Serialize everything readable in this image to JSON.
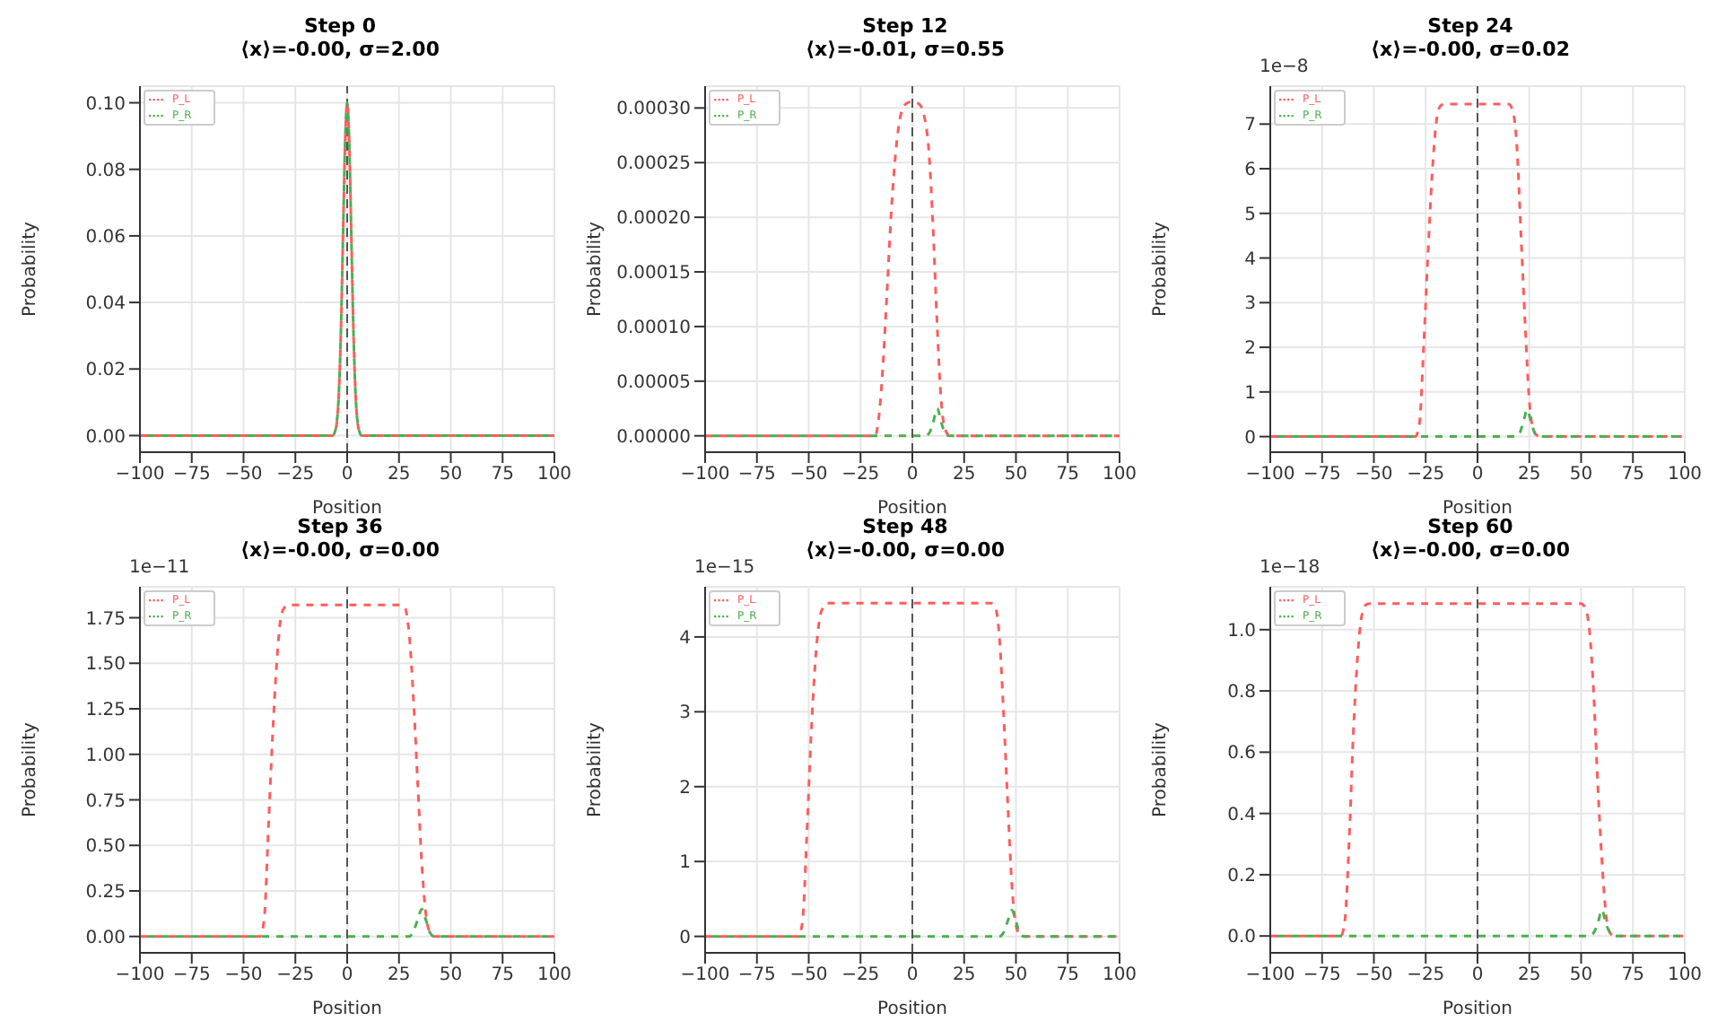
{
  "chart_data": [
    {
      "type": "line",
      "title": "Step 0",
      "subtitle": "⟨x⟩=-0.00, σ=2.00",
      "xlabel": "Position",
      "ylabel": "Probability",
      "legend": "top left",
      "grid": true,
      "marker": "none",
      "line_style": "dashed",
      "xlim": [
        -100,
        100
      ],
      "xticks": [
        {
          "value": -100,
          "label": "−100"
        },
        {
          "value": -75,
          "label": "−75"
        },
        {
          "value": -50,
          "label": "−50"
        },
        {
          "value": -25,
          "label": "−25"
        },
        0,
        25,
        50,
        75,
        100
      ],
      "ylim": [
        -0.005,
        0.105
      ],
      "yticks": [
        {
          "value": 0,
          "label": "0.00"
        },
        {
          "value": 0.02,
          "label": "0.02"
        },
        {
          "value": 0.04,
          "label": "0.04"
        },
        {
          "value": 0.06,
          "label": "0.06"
        },
        {
          "value": 0.08,
          "label": "0.08"
        },
        {
          "value": 0.1,
          "label": "0.10"
        }
      ],
      "ref_lines": [
        {
          "axis": "x",
          "value": 0,
          "color": "#555555",
          "line_style": "dashed"
        }
      ],
      "series": [
        {
          "name": "P_L",
          "color": "#ff5c5c",
          "x": [
            -100,
            -7,
            -6,
            -5,
            -4,
            -3,
            -2,
            -1,
            0,
            1,
            2,
            3,
            4,
            5,
            6,
            7,
            100
          ],
          "values": [
            0,
            0,
            0.001,
            0.004,
            0.013,
            0.032,
            0.06,
            0.088,
            0.1,
            0.088,
            0.06,
            0.032,
            0.013,
            0.004,
            0.001,
            0,
            0
          ]
        },
        {
          "name": "P_R",
          "color": "#4caf50",
          "x": [
            -100,
            -7,
            -6,
            -5,
            -4,
            -3,
            -2,
            -1,
            0,
            1,
            2,
            3,
            4,
            5,
            6,
            7,
            100
          ],
          "values": [
            0,
            0,
            0.001,
            0.004,
            0.013,
            0.032,
            0.06,
            0.088,
            0.1,
            0.088,
            0.06,
            0.032,
            0.013,
            0.004,
            0.001,
            0,
            0
          ]
        }
      ]
    },
    {
      "type": "line",
      "title": "Step 12",
      "subtitle": "⟨x⟩=-0.01, σ=0.55",
      "xlabel": "Position",
      "ylabel": "Probability",
      "legend": "top left",
      "grid": true,
      "marker": "none",
      "line_style": "dashed",
      "xlim": [
        -100,
        100
      ],
      "xticks": [
        {
          "value": -100,
          "label": "−100"
        },
        {
          "value": -75,
          "label": "−75"
        },
        {
          "value": -50,
          "label": "−50"
        },
        {
          "value": -25,
          "label": "−25"
        },
        0,
        25,
        50,
        75,
        100
      ],
      "ylim": [
        -1.5e-05,
        0.00032
      ],
      "yticks": [
        {
          "value": 0,
          "label": "0.00000"
        },
        {
          "value": 5e-05,
          "label": "0.00005"
        },
        {
          "value": 0.0001,
          "label": "0.00010"
        },
        {
          "value": 0.00015,
          "label": "0.00015"
        },
        {
          "value": 0.0002,
          "label": "0.00020"
        },
        {
          "value": 0.00025,
          "label": "0.00025"
        },
        {
          "value": 0.0003,
          "label": "0.00030"
        }
      ],
      "ref_lines": [
        {
          "axis": "x",
          "value": 0,
          "color": "#555555",
          "line_style": "dashed"
        }
      ],
      "series": [
        {
          "name": "P_L",
          "color": "#ff5c5c",
          "x": [
            -100,
            -18,
            -16,
            -14,
            -12,
            -10,
            -8,
            -6,
            -4,
            -2,
            0,
            2,
            4,
            6,
            8,
            10,
            12,
            14,
            16,
            18,
            100
          ],
          "values": [
            0,
            0,
            2e-05,
            7e-05,
            0.00014,
            0.00021,
            0.00026,
            0.00029,
            0.000302,
            0.000305,
            0.000306,
            0.000305,
            0.000302,
            0.00029,
            0.00026,
            0.00019,
            0.0001,
            3e-05,
            5e-06,
            0,
            0
          ]
        },
        {
          "name": "P_R",
          "color": "#4caf50",
          "x": [
            -100,
            6,
            8,
            10,
            12,
            14,
            16,
            18,
            100
          ],
          "values": [
            0,
            0,
            2e-06,
            1.2e-05,
            2.5e-05,
            1.2e-05,
            2e-06,
            0,
            0
          ]
        }
      ]
    },
    {
      "type": "line",
      "title": "Step 24",
      "subtitle": "⟨x⟩=-0.00, σ=0.02",
      "xlabel": "Position",
      "ylabel": "Probability",
      "legend": "top left",
      "grid": true,
      "marker": "none",
      "line_style": "dashed",
      "annotations": [
        "1e−8"
      ],
      "xlim": [
        -100,
        100
      ],
      "xticks": [
        {
          "value": -100,
          "label": "−100"
        },
        {
          "value": -75,
          "label": "−75"
        },
        {
          "value": -50,
          "label": "−50"
        },
        {
          "value": -25,
          "label": "−25"
        },
        0,
        25,
        50,
        75,
        100
      ],
      "ylim": [
        -0.35,
        7.85
      ],
      "yticks": [
        0,
        1,
        2,
        3,
        4,
        5,
        6,
        7
      ],
      "ref_lines": [
        {
          "axis": "x",
          "value": 0,
          "color": "#555555",
          "line_style": "dashed"
        }
      ],
      "series": [
        {
          "name": "P_L",
          "color": "#ff5c5c",
          "x": [
            -100,
            -30,
            -28,
            -26,
            -24,
            -22,
            -20,
            -18,
            -16,
            15,
            17,
            19,
            21,
            23,
            25,
            27,
            29,
            31,
            100
          ],
          "values": [
            0,
            0,
            0.3,
            2,
            4,
            5.8,
            7,
            7.4,
            7.45,
            7.45,
            7.3,
            6.5,
            4.5,
            2.5,
            0.8,
            0.15,
            0.02,
            0,
            0
          ]
        },
        {
          "name": "P_R",
          "color": "#4caf50",
          "x": [
            -100,
            18,
            20,
            22,
            24,
            26,
            28,
            30,
            100
          ],
          "values": [
            0,
            0,
            0.05,
            0.3,
            0.6,
            0.3,
            0.05,
            0,
            0
          ]
        }
      ]
    },
    {
      "type": "line",
      "title": "Step 36",
      "subtitle": "⟨x⟩=-0.00, σ=0.00",
      "xlabel": "Position",
      "ylabel": "Probability",
      "legend": "top left",
      "grid": true,
      "marker": "none",
      "line_style": "dashed",
      "annotations": [
        "1e−11"
      ],
      "xlim": [
        -100,
        100
      ],
      "xticks": [
        {
          "value": -100,
          "label": "−100"
        },
        {
          "value": -75,
          "label": "−75"
        },
        {
          "value": -50,
          "label": "−50"
        },
        {
          "value": -25,
          "label": "−25"
        },
        0,
        25,
        50,
        75,
        100
      ],
      "ylim": [
        -0.09,
        1.92
      ],
      "yticks": [
        {
          "value": 0,
          "label": "0.00"
        },
        0.25,
        {
          "value": 0.5,
          "label": "0.50"
        },
        0.75,
        {
          "value": 1,
          "label": "1.00"
        },
        1.25,
        {
          "value": 1.5,
          "label": "1.50"
        },
        1.75
      ],
      "ref_lines": [
        {
          "axis": "x",
          "value": 0,
          "color": "#555555",
          "line_style": "dashed"
        }
      ],
      "series": [
        {
          "name": "P_L",
          "color": "#ff5c5c",
          "x": [
            -100,
            -42,
            -40,
            -38,
            -36,
            -34,
            -32,
            -30,
            -28,
            26,
            28,
            30,
            32,
            34,
            36,
            38,
            40,
            42,
            100
          ],
          "values": [
            0,
            0,
            0.1,
            0.6,
            1.1,
            1.5,
            1.75,
            1.81,
            1.82,
            1.82,
            1.8,
            1.65,
            1.3,
            0.85,
            0.4,
            0.12,
            0.02,
            0,
            0
          ]
        },
        {
          "name": "P_R",
          "color": "#4caf50",
          "x": [
            -100,
            30,
            32,
            34,
            36,
            38,
            40,
            42,
            100
          ],
          "values": [
            0,
            0,
            0.03,
            0.09,
            0.15,
            0.09,
            0.02,
            0,
            0
          ]
        }
      ]
    },
    {
      "type": "line",
      "title": "Step 48",
      "subtitle": "⟨x⟩=-0.00, σ=0.00",
      "xlabel": "Position",
      "ylabel": "Probability",
      "legend": "top left",
      "grid": true,
      "marker": "none",
      "line_style": "dashed",
      "annotations": [
        "1e−15"
      ],
      "xlim": [
        -100,
        100
      ],
      "xticks": [
        {
          "value": -100,
          "label": "−100"
        },
        {
          "value": -75,
          "label": "−75"
        },
        {
          "value": -50,
          "label": "−50"
        },
        {
          "value": -25,
          "label": "−25"
        },
        0,
        25,
        50,
        75,
        100
      ],
      "ylim": [
        -0.22,
        4.67
      ],
      "yticks": [
        0,
        1,
        2,
        3,
        4
      ],
      "ref_lines": [
        {
          "axis": "x",
          "value": 0,
          "color": "#555555",
          "line_style": "dashed"
        }
      ],
      "series": [
        {
          "name": "P_L",
          "color": "#ff5c5c",
          "x": [
            -100,
            -55,
            -53,
            -51,
            -49,
            -47,
            -45,
            -43,
            -41,
            38,
            40,
            42,
            44,
            46,
            48,
            50,
            52,
            54,
            100
          ],
          "values": [
            0,
            0,
            0.2,
            1.3,
            2.6,
            3.6,
            4.2,
            4.4,
            4.45,
            4.45,
            4.4,
            4,
            3,
            1.8,
            0.7,
            0.15,
            0.02,
            0,
            0
          ]
        },
        {
          "name": "P_R",
          "color": "#4caf50",
          "x": [
            -100,
            42,
            44,
            46,
            48,
            50,
            52,
            54,
            100
          ],
          "values": [
            0,
            0,
            0.05,
            0.2,
            0.35,
            0.2,
            0.03,
            0,
            0
          ]
        }
      ]
    },
    {
      "type": "line",
      "title": "Step 60",
      "subtitle": "⟨x⟩=-0.00, σ=0.00",
      "xlabel": "Position",
      "ylabel": "Probability",
      "legend": "top left",
      "grid": true,
      "marker": "none",
      "line_style": "dashed",
      "annotations": [
        "1e−18"
      ],
      "xlim": [
        -100,
        100
      ],
      "xticks": [
        {
          "value": -100,
          "label": "−100"
        },
        {
          "value": -75,
          "label": "−75"
        },
        {
          "value": -50,
          "label": "−50"
        },
        {
          "value": -25,
          "label": "−25"
        },
        0,
        25,
        50,
        75,
        100
      ],
      "ylim": [
        -0.055,
        1.14
      ],
      "yticks": [
        {
          "value": 0,
          "label": "0.0"
        },
        0.2,
        0.4,
        0.6,
        0.8,
        {
          "value": 1,
          "label": "1.0"
        }
      ],
      "ref_lines": [
        {
          "axis": "x",
          "value": 0,
          "color": "#555555",
          "line_style": "dashed"
        }
      ],
      "series": [
        {
          "name": "P_L",
          "color": "#ff5c5c",
          "x": [
            -100,
            -66,
            -64,
            -62,
            -60,
            -58,
            -56,
            -54,
            -52,
            50,
            52,
            54,
            56,
            58,
            60,
            62,
            64,
            66,
            100
          ],
          "values": [
            0,
            0,
            0.05,
            0.3,
            0.65,
            0.9,
            1.04,
            1.08,
            1.085,
            1.085,
            1.07,
            1,
            0.8,
            0.5,
            0.25,
            0.07,
            0.01,
            0,
            0
          ]
        },
        {
          "name": "P_R",
          "color": "#4caf50",
          "x": [
            -100,
            54,
            56,
            58,
            60,
            62,
            64,
            66,
            100
          ],
          "values": [
            0,
            0,
            0.01,
            0.04,
            0.085,
            0.04,
            0.01,
            0,
            0
          ]
        }
      ]
    }
  ]
}
